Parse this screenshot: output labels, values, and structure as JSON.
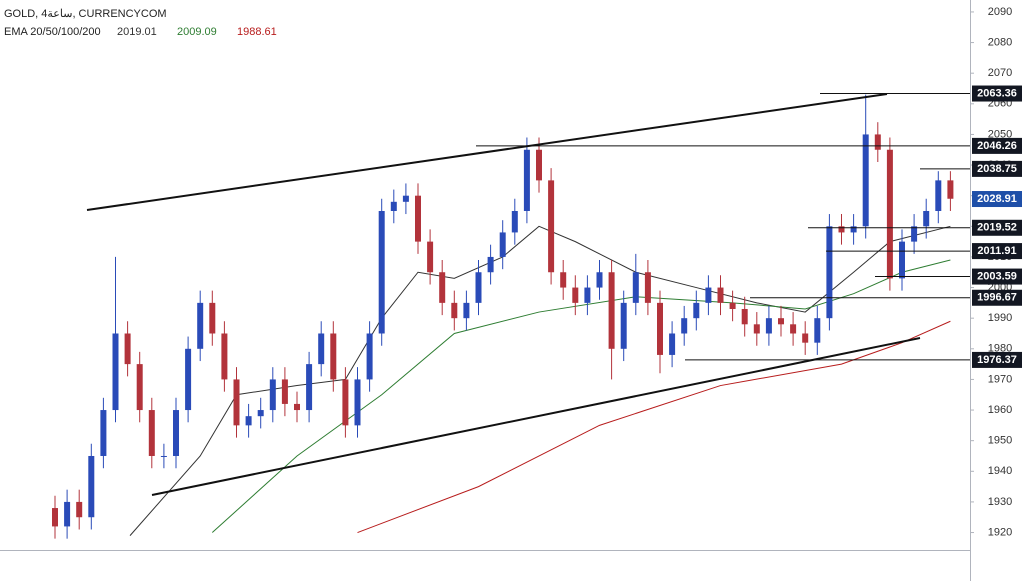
{
  "chart_data": {
    "type": "candlestick",
    "title": "GOLD, 4ساعة, CURRENCYCOM",
    "indicator": {
      "label": "EMA 20/50/100/200",
      "values": [
        2019.01,
        2009.09,
        1988.61
      ],
      "colors": [
        "#333333",
        "#2e7d32",
        "#b71c1c"
      ]
    },
    "up_color": "#2a4bb8",
    "down_color": "#b2333b",
    "open": [
      1928,
      1922,
      1930,
      1925,
      1945,
      1960,
      1985,
      1975,
      1960,
      1945,
      1945,
      1960,
      1980,
      1995,
      1985,
      1970,
      1955,
      1958,
      1960,
      1970,
      1962,
      1960,
      1975,
      1985,
      1970,
      1955,
      1970,
      1985,
      2025,
      2028,
      2030,
      2015,
      2005,
      1995,
      1990,
      1995,
      2005,
      2010,
      2018,
      2025,
      2045,
      2035,
      2005,
      2000,
      1995,
      2000,
      2005,
      1980,
      1995,
      2005,
      1995,
      1978,
      1985,
      1990,
      1995,
      2000,
      1995,
      1993,
      1988,
      1985,
      1990,
      1988,
      1985,
      1982,
      1990,
      2020,
      2018,
      2020,
      2050,
      2045,
      2003,
      2015,
      2020,
      2025,
      2035
    ],
    "high": [
      1932,
      1934,
      1934,
      1949,
      1964,
      2010,
      1989,
      1979,
      1964,
      1949,
      1964,
      1984,
      1999,
      1999,
      1989,
      1974,
      1962,
      1964,
      1974,
      1974,
      1966,
      1979,
      1989,
      1989,
      1974,
      1974,
      1989,
      2029,
      2032,
      2034,
      2034,
      2019,
      2009,
      1999,
      1999,
      2009,
      2014,
      2022,
      2029,
      2049,
      2049,
      2039,
      2009,
      2004,
      2004,
      2009,
      2009,
      1999,
      2011,
      2009,
      1999,
      1989,
      1994,
      1999,
      2004,
      2004,
      1999,
      1997,
      1992,
      1994,
      1994,
      1992,
      1989,
      1994,
      2024,
      2024,
      2024,
      2063,
      2054,
      2049,
      2019,
      2024,
      2029,
      2038,
      2038
    ],
    "low": [
      1918,
      1918,
      1921,
      1921,
      1941,
      1956,
      1971,
      1956,
      1941,
      1941,
      1941,
      1956,
      1976,
      1981,
      1966,
      1951,
      1951,
      1954,
      1956,
      1958,
      1956,
      1956,
      1971,
      1966,
      1951,
      1951,
      1966,
      1981,
      2021,
      2024,
      2011,
      2001,
      1991,
      1986,
      1986,
      1991,
      2001,
      2006,
      2014,
      2021,
      2031,
      2001,
      1996,
      1991,
      1991,
      1996,
      1970,
      1976,
      1991,
      1991,
      1972,
      1974,
      1981,
      1986,
      1991,
      1991,
      1989,
      1984,
      1981,
      1981,
      1984,
      1981,
      1978,
      1978,
      1986,
      2014,
      2014,
      2016,
      2041,
      1999,
      1999,
      2011,
      2016,
      2021,
      2025
    ],
    "close": [
      1922,
      1930,
      1925,
      1945,
      1960,
      1985,
      1975,
      1960,
      1945,
      1945,
      1960,
      1980,
      1995,
      1985,
      1970,
      1955,
      1958,
      1960,
      1970,
      1962,
      1960,
      1975,
      1985,
      1970,
      1955,
      1970,
      1985,
      2025,
      2028,
      2030,
      2015,
      2005,
      1995,
      1990,
      1995,
      2005,
      2010,
      2018,
      2025,
      2045,
      2035,
      2005,
      2000,
      1995,
      2000,
      2005,
      1980,
      1995,
      2005,
      1995,
      1978,
      1985,
      1990,
      1995,
      2000,
      1995,
      1993,
      1988,
      1985,
      1990,
      1988,
      1985,
      1982,
      1990,
      2020,
      2018,
      2020,
      2050,
      2045,
      2003,
      2015,
      2020,
      2025,
      2035,
      2029
    ],
    "ema_lines": [
      {
        "color": "#333333",
        "x": [
          6.2,
          12,
          15,
          20,
          24,
          27,
          30,
          33,
          37,
          40,
          43,
          48,
          53,
          58,
          62,
          66,
          69,
          74
        ],
        "values": [
          1919,
          1945,
          1965,
          1968,
          1970,
          1990,
          2005,
          2003,
          2010,
          2020,
          2015,
          2005,
          2000,
          1995,
          1992,
          2005,
          2015,
          2020
        ]
      },
      {
        "color": "#2e7d32",
        "x": [
          13,
          20,
          27,
          33,
          40,
          48,
          56,
          62,
          66,
          70,
          74
        ],
        "values": [
          1920,
          1945,
          1965,
          1985,
          1992,
          1997,
          1995,
          1993,
          1998,
          2005,
          2009
        ]
      },
      {
        "color": "#b71c1c",
        "x": [
          25,
          35,
          45,
          55,
          65,
          70,
          74
        ],
        "values": [
          1920,
          1935,
          1955,
          1968,
          1975,
          1982,
          1989
        ]
      }
    ],
    "levels": [
      2063.36,
      2046.26,
      2038.75,
      2019.52,
      2011.91,
      2003.59,
      1996.67,
      1976.37
    ],
    "last_price": 2028.91,
    "ylim": [
      1914.3,
      2093.9
    ],
    "yticks": [
      1920,
      1930,
      1940,
      1950,
      1960,
      1970,
      1980,
      1990,
      2000,
      2010,
      2020,
      2030,
      2040,
      2050,
      2060,
      2070,
      2080,
      2090
    ]
  }
}
